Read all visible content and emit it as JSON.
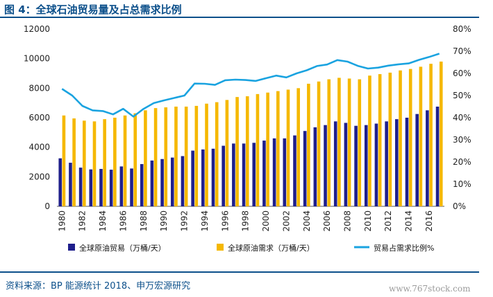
{
  "figure": {
    "title": "图 4：全球石油贸易量及占总需求比例",
    "source": "资料来源：BP 能源统计 2018、申万宏源研究",
    "watermark": "www.767stock.com"
  },
  "chart_data": {
    "type": "bar",
    "categories": [
      "1980",
      "1981",
      "1982",
      "1983",
      "1984",
      "1985",
      "1986",
      "1987",
      "1988",
      "1989",
      "1990",
      "1991",
      "1992",
      "1993",
      "1994",
      "1995",
      "1996",
      "1997",
      "1998",
      "1999",
      "2000",
      "2001",
      "2002",
      "2003",
      "2004",
      "2005",
      "2006",
      "2007",
      "2008",
      "2009",
      "2010",
      "2011",
      "2012",
      "2013",
      "2014",
      "2015",
      "2016",
      "2017"
    ],
    "x_tick_labels": [
      "1980",
      "1982",
      "1984",
      "1986",
      "1988",
      "1990",
      "1992",
      "1994",
      "1996",
      "1998",
      "2000",
      "2002",
      "2004",
      "2006",
      "2008",
      "2010",
      "2012",
      "2014",
      "2016"
    ],
    "series": [
      {
        "name": "全球原油贸易（万桶/天）",
        "type": "bar",
        "axis": "left",
        "color": "#1f1f8c",
        "values": [
          3250,
          2950,
          2620,
          2500,
          2530,
          2480,
          2700,
          2560,
          2860,
          3100,
          3200,
          3300,
          3400,
          3770,
          3850,
          3900,
          4100,
          4250,
          4250,
          4300,
          4450,
          4600,
          4600,
          4800,
          5100,
          5350,
          5500,
          5750,
          5650,
          5450,
          5500,
          5600,
          5750,
          5900,
          6000,
          6250,
          6500,
          6750
        ]
      },
      {
        "name": "全球原油需求（万桶/天）",
        "type": "bar",
        "axis": "left",
        "color": "#f5b800",
        "values": [
          6150,
          5950,
          5800,
          5750,
          5900,
          6000,
          6150,
          6300,
          6500,
          6650,
          6700,
          6750,
          6750,
          6800,
          6950,
          7050,
          7200,
          7400,
          7450,
          7600,
          7700,
          7800,
          7900,
          8000,
          8300,
          8450,
          8600,
          8700,
          8650,
          8600,
          8850,
          8950,
          9050,
          9200,
          9300,
          9450,
          9650,
          9800
        ]
      },
      {
        "name": "贸易占需求比例%",
        "type": "line",
        "axis": "right",
        "color": "#1aa3e0",
        "values": [
          0.53,
          0.5,
          0.453,
          0.433,
          0.43,
          0.415,
          0.44,
          0.405,
          0.44,
          0.466,
          0.478,
          0.489,
          0.5,
          0.554,
          0.553,
          0.548,
          0.569,
          0.572,
          0.57,
          0.566,
          0.578,
          0.59,
          0.582,
          0.6,
          0.614,
          0.633,
          0.64,
          0.66,
          0.653,
          0.634,
          0.622,
          0.626,
          0.635,
          0.641,
          0.645,
          0.661,
          0.674,
          0.689
        ]
      }
    ],
    "y_left": {
      "min": 0,
      "max": 12000,
      "ticks": [
        "0",
        "2000",
        "4000",
        "6000",
        "8000",
        "10000",
        "12000"
      ]
    },
    "y_right": {
      "min": 0,
      "max": 0.8,
      "ticks": [
        "0%",
        "10%",
        "20%",
        "30%",
        "40%",
        "50%",
        "60%",
        "70%",
        "80%"
      ]
    },
    "grid": false,
    "legend_position": "bottom"
  }
}
